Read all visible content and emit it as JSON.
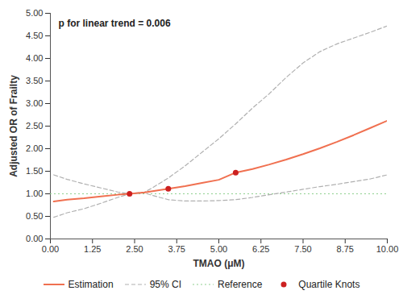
{
  "chart_data": {
    "type": "line",
    "annotation": "p for linear trend = 0.006",
    "xlabel": "TMAO (μM)",
    "ylabel": "Adjusted OR of Frailty",
    "xlim": [
      0.0,
      10.0
    ],
    "ylim": [
      0.0,
      5.0
    ],
    "xticks": [
      {
        "value": 0.0,
        "label": "0.00"
      },
      1.25,
      {
        "value": 2.5,
        "label": "2.50"
      },
      3.75,
      {
        "value": 5.0,
        "label": "5.00"
      },
      6.25,
      {
        "value": 7.5,
        "label": "7.50"
      },
      8.75,
      {
        "value": 10.0,
        "label": "10.00"
      }
    ],
    "yticks": [
      {
        "value": 0.0,
        "label": "0.00"
      },
      {
        "value": 0.5,
        "label": "0.50"
      },
      {
        "value": 1.0,
        "label": "1.00"
      },
      {
        "value": 1.5,
        "label": "1.50"
      },
      {
        "value": 2.0,
        "label": "2.00"
      },
      {
        "value": 2.5,
        "label": "2.50"
      },
      {
        "value": 3.0,
        "label": "3.00"
      },
      {
        "value": 3.5,
        "label": "3.50"
      },
      {
        "value": 4.0,
        "label": "4.00"
      },
      {
        "value": 4.5,
        "label": "4.50"
      },
      {
        "value": 5.0,
        "label": "5.00"
      }
    ],
    "grid": false,
    "legend": "bottom",
    "series": [
      {
        "name": "Estimation",
        "type": "line",
        "color": "#F07050",
        "line_style": "solid",
        "x": [
          0.1,
          0.5,
          1.0,
          1.5,
          2.0,
          2.35,
          2.8,
          3.5,
          4.0,
          4.5,
          5.0,
          5.5,
          6.0,
          6.5,
          7.0,
          7.5,
          8.0,
          8.5,
          9.0,
          9.5,
          10.0
        ],
        "values": [
          0.83,
          0.87,
          0.9,
          0.94,
          0.98,
          1.0,
          1.03,
          1.11,
          1.17,
          1.24,
          1.31,
          1.47,
          1.55,
          1.65,
          1.76,
          1.88,
          2.01,
          2.15,
          2.3,
          2.46,
          2.62
        ]
      },
      {
        "name": "95% CI",
        "type": "line",
        "color": "#B0B0B0",
        "line_style": "dashed",
        "x": [
          0.1,
          0.5,
          1.0,
          1.5,
          2.0,
          2.35,
          2.8,
          3.0,
          3.5,
          4.0,
          4.5,
          5.0,
          5.5,
          6.0,
          6.5,
          7.0,
          7.5,
          8.0,
          8.5,
          9.0,
          9.5,
          10.0
        ],
        "values": [
          1.42,
          1.32,
          1.22,
          1.13,
          1.04,
          1.0,
          1.04,
          1.12,
          1.35,
          1.62,
          1.92,
          2.22,
          2.55,
          2.9,
          3.22,
          3.58,
          3.9,
          4.15,
          4.32,
          4.45,
          4.58,
          4.72
        ]
      },
      {
        "name": "95% CI",
        "type": "line",
        "color": "#B0B0B0",
        "line_style": "dashed",
        "x": [
          0.1,
          0.5,
          1.0,
          1.5,
          2.0,
          2.35,
          2.8,
          3.0,
          3.5,
          4.0,
          4.5,
          5.0,
          5.5,
          6.0,
          6.5,
          7.0,
          7.5,
          8.0,
          8.5,
          9.0,
          9.5,
          10.0
        ],
        "values": [
          0.48,
          0.58,
          0.67,
          0.79,
          0.92,
          1.0,
          1.02,
          0.97,
          0.87,
          0.84,
          0.84,
          0.85,
          0.87,
          0.92,
          0.98,
          1.04,
          1.1,
          1.16,
          1.21,
          1.27,
          1.33,
          1.42
        ]
      },
      {
        "name": "Reference",
        "type": "hline",
        "color": "#90D090",
        "line_style": "dotted",
        "values": [
          1.0
        ]
      },
      {
        "name": "Quartile Knots",
        "type": "scatter",
        "color": "#CC2020",
        "marker": "circle",
        "x": [
          2.35,
          3.5,
          5.5
        ],
        "values": [
          1.0,
          1.11,
          1.47
        ]
      }
    ]
  }
}
